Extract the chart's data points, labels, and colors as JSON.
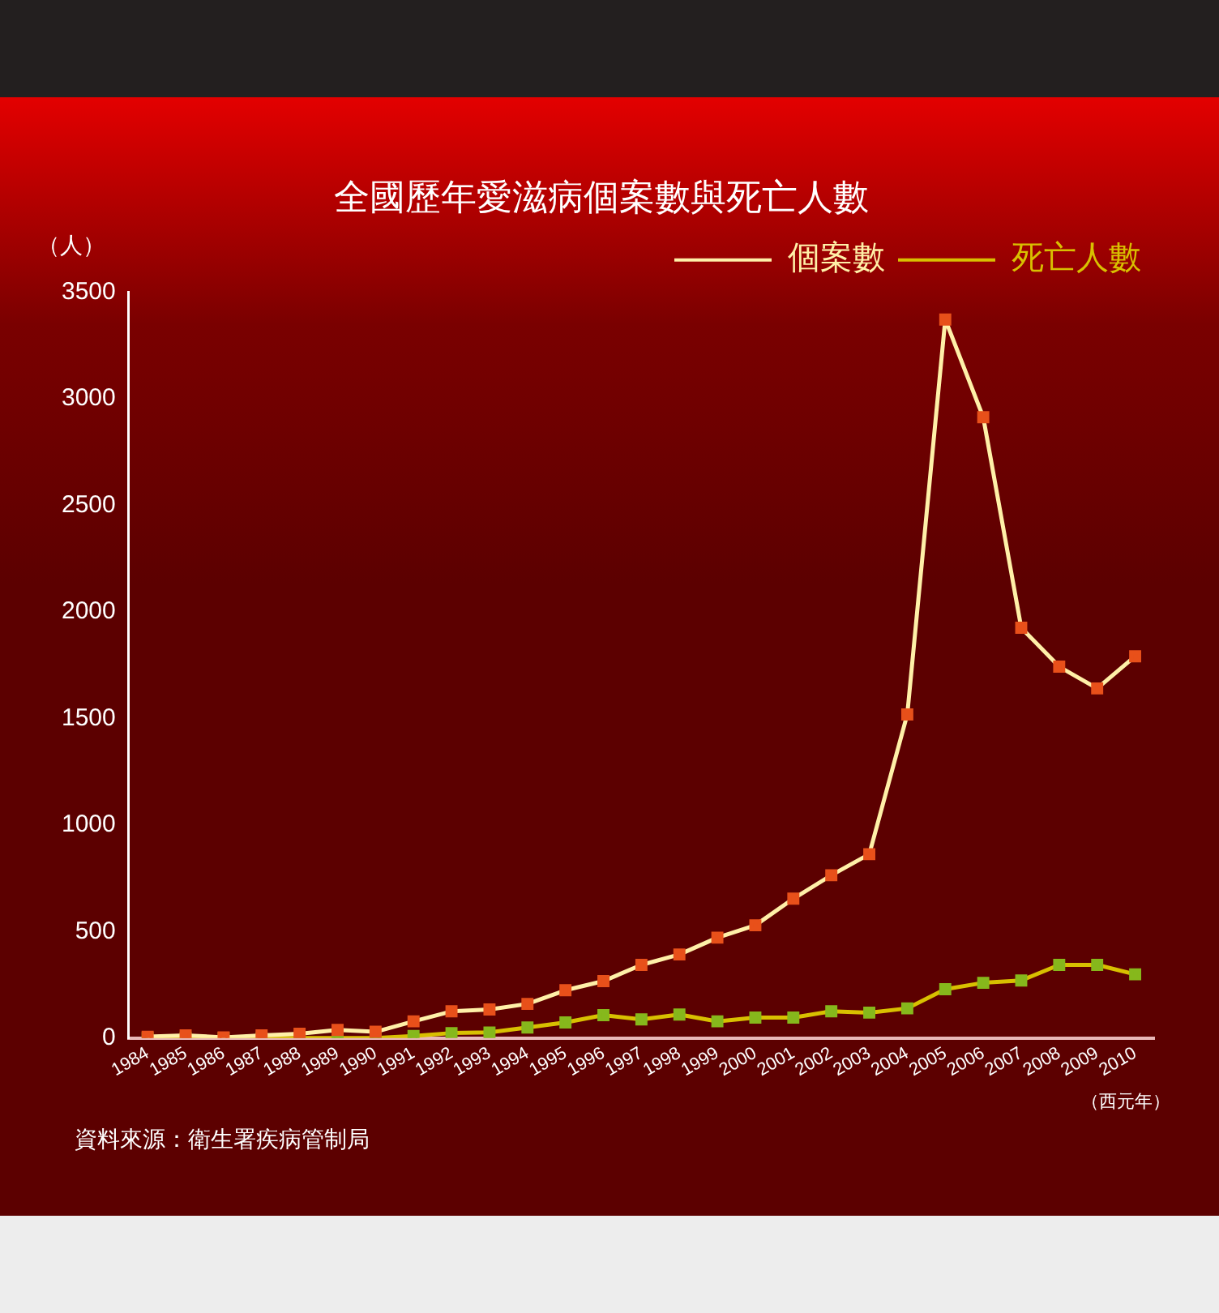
{
  "chart_data": {
    "type": "line",
    "title": "全國歷年愛滋病個案數與死亡人數",
    "ylabel": "（人）",
    "xlabel": "（西元年）",
    "categories": [
      "1984",
      "1985",
      "1986",
      "1987",
      "1988",
      "1989",
      "1990",
      "1991",
      "1992",
      "1993",
      "1994",
      "1995",
      "1996",
      "1997",
      "1998",
      "1999",
      "2000",
      "2001",
      "2002",
      "2003",
      "2004",
      "2005",
      "2006",
      "2007",
      "2008",
      "2009",
      "2010"
    ],
    "series": [
      {
        "name": "個案數",
        "color": "#fff0a8",
        "colors": [
          "#e8501a",
          "#e8501a",
          "#e8501a",
          "#e8501a",
          "#e8501a",
          "#e8501a",
          "#e8501a",
          "#e8501a",
          "#e8501a",
          "#e8501a",
          "#e8501a",
          "#e8501a",
          "#e8501a",
          "#e8501a",
          "#e8501a",
          "#e8501a",
          "#e8501a",
          "#e8501a",
          "#e8501a",
          "#e8501a",
          "#e8501a",
          "#e8501a",
          "#e8501a",
          "#e8501a",
          "#e8501a",
          "#e8501a",
          "#e8501a"
        ],
        "values": [
          6,
          12,
          3,
          12,
          20,
          38,
          29,
          78,
          125,
          134,
          160,
          224,
          267,
          343,
          392,
          471,
          529,
          654,
          764,
          863,
          1519,
          3373,
          2914,
          1926,
          1743,
          1641,
          1792
        ]
      },
      {
        "name": "死亡人數",
        "color": "#d8c000",
        "colors": [
          "#86b81c",
          "#86b81c",
          "#86b81c",
          "#86b81c",
          "#86b81c",
          "#86b81c",
          "#86b81c",
          "#86b81c",
          "#86b81c",
          "#86b81c",
          "#86b81c",
          "#86b81c",
          "#86b81c",
          "#86b81c",
          "#86b81c",
          "#86b81c",
          "#86b81c",
          "#86b81c",
          "#86b81c",
          "#86b81c",
          "#86b81c",
          "#86b81c",
          "#86b81c",
          "#86b81c",
          "#86b81c",
          "#86b81c",
          "#86b81c"
        ],
        "values": [
          0,
          0,
          0,
          0,
          0,
          0,
          0,
          9,
          23,
          26,
          49,
          73,
          107,
          87,
          110,
          78,
          96,
          96,
          125,
          119,
          139,
          229,
          259,
          270,
          343,
          343,
          299
        ]
      }
    ],
    "ylim": [
      0,
      3500
    ],
    "yticks": [
      0,
      500,
      1000,
      1500,
      2000,
      2500,
      3000,
      3500
    ],
    "grid": false,
    "legend": "top right",
    "marker": "square",
    "line_style": "solid",
    "annotations": [
      "資料來源：衛生署疾病管制局"
    ]
  }
}
